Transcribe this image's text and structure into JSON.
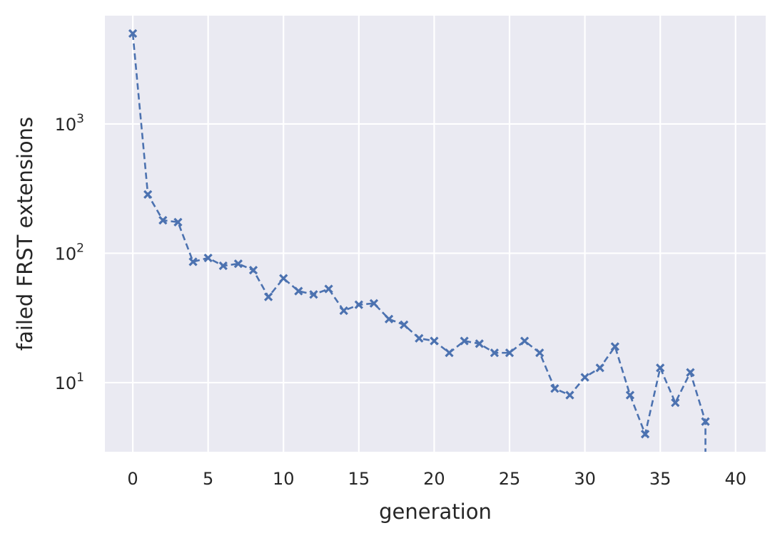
{
  "chart_data": {
    "type": "line",
    "title": "",
    "xlabel": "generation",
    "ylabel": "failed FRST extensions",
    "xlim": [
      -1.85,
      42
    ],
    "ylim": [
      2.92,
      6870
    ],
    "yscale": "log",
    "grid": true,
    "x_ticks": [
      0,
      5,
      10,
      15,
      20,
      25,
      30,
      35,
      40
    ],
    "y_ticks": [
      {
        "value": 10,
        "base": "10",
        "exp": "1"
      },
      {
        "value": 100,
        "base": "10",
        "exp": "2"
      },
      {
        "value": 1000,
        "base": "10",
        "exp": "3"
      }
    ],
    "series": [
      {
        "color": "#4c72b0",
        "linestyle": "dashed",
        "marker": "x",
        "x": [
          0,
          1,
          2,
          3,
          4,
          5,
          6,
          7,
          8,
          9,
          10,
          11,
          12,
          13,
          14,
          15,
          16,
          17,
          18,
          19,
          20,
          21,
          22,
          23,
          24,
          25,
          26,
          27,
          28,
          29,
          30,
          31,
          32,
          33,
          34,
          35,
          36,
          37,
          38,
          39
        ],
        "y": [
          5000,
          285,
          180,
          174,
          86,
          92,
          80,
          83,
          74,
          46,
          64,
          51,
          48,
          53,
          36,
          40,
          41,
          31,
          28,
          22,
          21,
          17,
          21,
          20,
          17,
          17,
          21,
          17,
          9,
          8,
          11,
          13,
          19,
          8,
          4,
          13,
          7,
          12,
          5,
          0
        ]
      }
    ],
    "background": "#eaeaf2",
    "grid_color": "#ffffff"
  }
}
